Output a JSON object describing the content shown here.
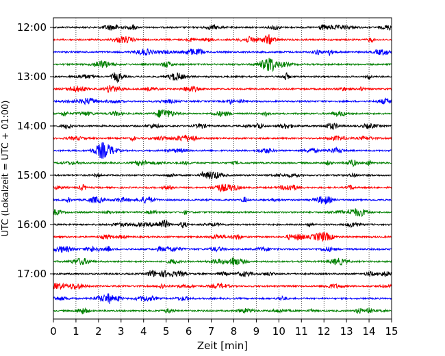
{
  "chart_data": {
    "type": "line",
    "title": "",
    "xlabel": "Zeit  [min]",
    "ylabel": "UTC (Lokalzeit = UTC + 01:00)",
    "xlim": [
      0,
      15
    ],
    "x_ticks": [
      "0",
      "1",
      "2",
      "3",
      "4",
      "5",
      "6",
      "7",
      "8",
      "9",
      "10",
      "11",
      "12",
      "13",
      "14",
      "15"
    ],
    "y_ticks": [
      "12:00",
      "13:00",
      "14:00",
      "15:00",
      "16:00",
      "17:00"
    ],
    "grid": "vertical dotted lines at each minute",
    "trace_colors": [
      "#000000",
      "#ff0000",
      "#0000ff",
      "#008000"
    ],
    "traces": [
      {
        "start": "12:00",
        "color": "#000000"
      },
      {
        "start": "12:15",
        "color": "#ff0000"
      },
      {
        "start": "12:30",
        "color": "#0000ff"
      },
      {
        "start": "12:45",
        "color": "#008000"
      },
      {
        "start": "13:00",
        "color": "#000000"
      },
      {
        "start": "13:15",
        "color": "#ff0000"
      },
      {
        "start": "13:30",
        "color": "#0000ff"
      },
      {
        "start": "13:45",
        "color": "#008000"
      },
      {
        "start": "14:00",
        "color": "#000000"
      },
      {
        "start": "14:15",
        "color": "#ff0000"
      },
      {
        "start": "14:30",
        "color": "#0000ff"
      },
      {
        "start": "14:45",
        "color": "#008000"
      },
      {
        "start": "15:00",
        "color": "#000000"
      },
      {
        "start": "15:15",
        "color": "#ff0000"
      },
      {
        "start": "15:30",
        "color": "#0000ff"
      },
      {
        "start": "15:45",
        "color": "#008000"
      },
      {
        "start": "16:00",
        "color": "#000000"
      },
      {
        "start": "16:15",
        "color": "#ff0000"
      },
      {
        "start": "16:30",
        "color": "#0000ff"
      },
      {
        "start": "16:45",
        "color": "#008000"
      },
      {
        "start": "17:00",
        "color": "#000000"
      },
      {
        "start": "17:15",
        "color": "#ff0000"
      },
      {
        "start": "17:30",
        "color": "#0000ff"
      },
      {
        "start": "17:45",
        "color": "#008000"
      }
    ]
  }
}
